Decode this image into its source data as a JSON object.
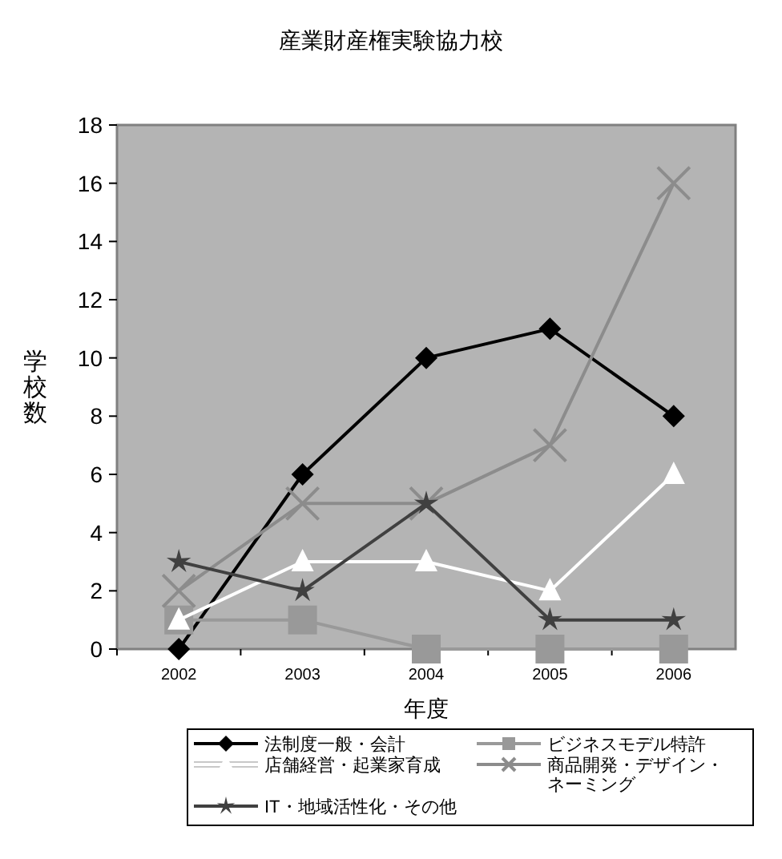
{
  "chart_data": {
    "type": "line",
    "title": "産業財産権実験協力校",
    "xlabel": "年度",
    "ylabel": "学校数",
    "categories": [
      "2002",
      "2003",
      "2004",
      "2005",
      "2006"
    ],
    "series": [
      {
        "name": "法制度一般・会計",
        "color": "#000000",
        "marker": "diamond",
        "values": [
          0,
          6,
          10,
          11,
          8
        ]
      },
      {
        "name": "ビジネスモデル特許",
        "color": "#999999",
        "marker": "square",
        "values": [
          1,
          1,
          0,
          0,
          0
        ]
      },
      {
        "name": "店舗経営・起業家育成",
        "color": "#ffffff",
        "marker": "triangle",
        "values": [
          1,
          3,
          3,
          2,
          6
        ]
      },
      {
        "name": "商品開発・デザイン・ネーミング",
        "color": "#8c8c8c",
        "marker": "cross",
        "values": [
          2,
          5,
          5,
          7,
          16
        ]
      },
      {
        "name": "IT・地域活性化・その他",
        "color": "#404040",
        "marker": "star",
        "values": [
          3,
          2,
          5,
          1,
          1
        ]
      }
    ],
    "ylim": [
      0,
      18
    ],
    "yticks": [
      0,
      2,
      4,
      6,
      8,
      10,
      12,
      14,
      16,
      18
    ],
    "grid": false,
    "legend": "bottom"
  }
}
